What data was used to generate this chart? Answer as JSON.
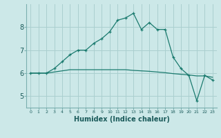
{
  "xlabel": "Humidex (Indice chaleur)",
  "background_color": "#cce8e8",
  "grid_color": "#aacfcf",
  "line_color": "#1a7a6e",
  "xlim": [
    -0.5,
    23.5
  ],
  "ylim": [
    4.5,
    9.0
  ],
  "yticks": [
    5,
    6,
    7,
    8
  ],
  "xticks": [
    0,
    1,
    2,
    3,
    4,
    5,
    6,
    7,
    8,
    9,
    10,
    11,
    12,
    13,
    14,
    15,
    16,
    17,
    18,
    19,
    20,
    21,
    22,
    23
  ],
  "series0": [
    6.0,
    6.0,
    6.0,
    6.05,
    6.1,
    6.15,
    6.15,
    6.15,
    6.15,
    6.15,
    6.15,
    6.15,
    6.15,
    6.12,
    6.1,
    6.08,
    6.05,
    6.02,
    5.98,
    5.95,
    5.92,
    5.88,
    5.88,
    5.82
  ],
  "series1": [
    6.0,
    6.0,
    6.0,
    6.2,
    6.5,
    6.8,
    7.0,
    7.0,
    7.3,
    7.5,
    7.8,
    8.3,
    8.4,
    8.6,
    7.9,
    8.2,
    7.9,
    7.9,
    6.7,
    6.2,
    5.9,
    4.8,
    5.9,
    5.7
  ],
  "xlabel_fontsize": 7,
  "xtick_fontsize": 4.5,
  "ytick_fontsize": 7
}
